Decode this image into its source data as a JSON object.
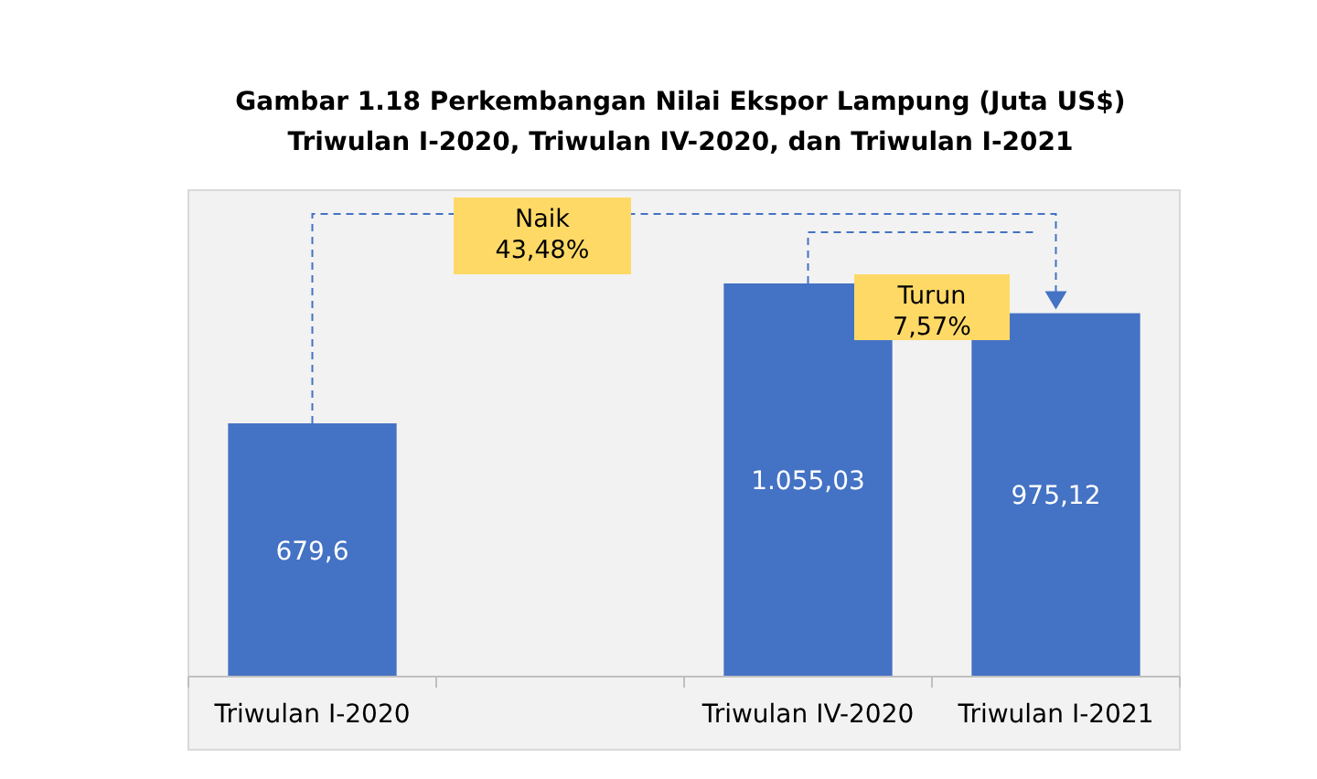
{
  "chart_data": {
    "type": "bar",
    "title": "Gambar 1.18 Perkembangan Nilai Ekspor Lampung (Juta US$)",
    "subtitle": "Triwulan I-2020, Triwulan IV-2020, dan Triwulan I-2021",
    "categories": [
      "Triwulan I-2020",
      null,
      "Triwulan IV-2020",
      "Triwulan I-2021"
    ],
    "values": [
      679.6,
      null,
      1055.03,
      975.12
    ],
    "value_labels": [
      "679,6",
      null,
      "1.055,03",
      "975,12"
    ],
    "color": "#4472c4",
    "annotations": [
      "Naik\n43,48%",
      "Turun\n7,57%"
    ],
    "grid": false
  }
}
